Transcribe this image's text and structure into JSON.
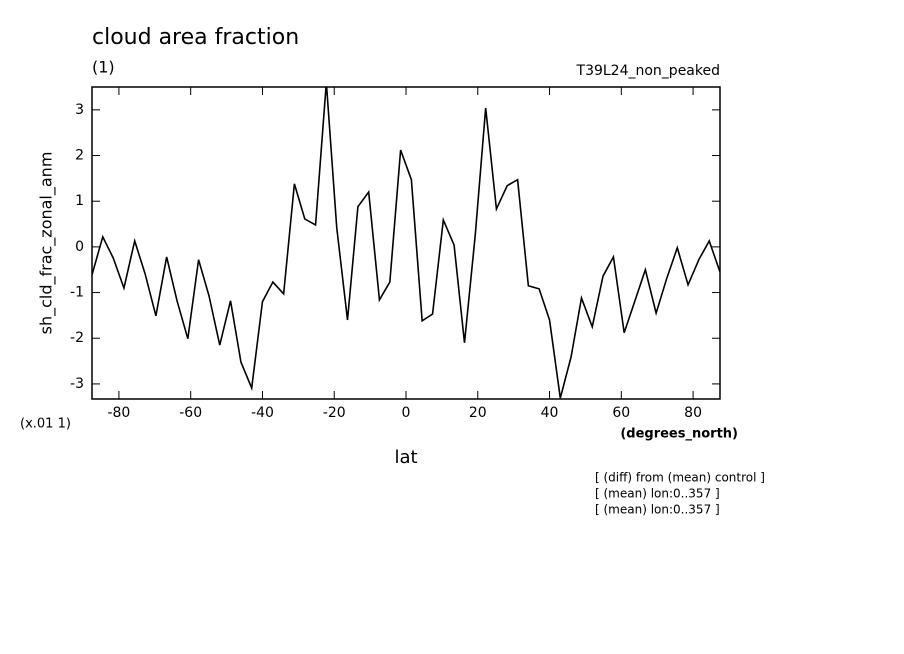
{
  "chart_data": {
    "type": "line",
    "title": "cloud area fraction",
    "subtitle": "(1)",
    "run_label": "T39L24_non_peaked",
    "y_label": "sh_cld_frac_zonal_anm",
    "y_scale_label": "(x.01 1)",
    "x_label": "lat",
    "x_units": "(degrees_north)",
    "notes": [
      "[ (diff) from (mean) control ]",
      "[ (mean) lon:0..357 ]",
      "[ (mean) lon:0..357 ]"
    ],
    "x": [
      -87.5,
      -84.5,
      -81.6,
      -78.6,
      -75.6,
      -72.7,
      -69.7,
      -66.7,
      -63.8,
      -60.8,
      -57.8,
      -54.9,
      -51.9,
      -48.9,
      -46.0,
      -43.0,
      -40.0,
      -37.1,
      -34.1,
      -31.1,
      -28.2,
      -25.2,
      -22.2,
      -19.3,
      -16.3,
      -13.4,
      -10.4,
      -7.4,
      -4.5,
      -1.5,
      1.5,
      4.5,
      7.4,
      10.4,
      13.4,
      16.3,
      19.3,
      22.2,
      25.2,
      28.2,
      31.1,
      34.1,
      37.1,
      40.0,
      43.0,
      46.0,
      48.9,
      51.9,
      54.9,
      57.8,
      60.8,
      63.8,
      66.7,
      69.7,
      72.7,
      75.6,
      78.6,
      81.6,
      84.5,
      87.5
    ],
    "series": [
      {
        "color": "#000000",
        "values": [
          -0.61,
          0.22,
          -0.24,
          -0.9,
          0.13,
          -0.59,
          -1.51,
          -0.22,
          -1.18,
          -2.01,
          -0.28,
          -1.07,
          -2.15,
          -1.18,
          -2.52,
          -3.09,
          -1.2,
          -0.77,
          -1.03,
          1.38,
          0.61,
          0.48,
          3.6,
          0.42,
          -1.6,
          0.88,
          1.2,
          -1.16,
          -0.77,
          2.12,
          1.47,
          -1.62,
          -1.47,
          0.59,
          0.04,
          -2.1,
          0.26,
          3.04,
          0.83,
          1.34,
          1.47,
          -0.85,
          -0.92,
          -1.6,
          -3.31,
          -2.41,
          -1.12,
          -1.75,
          -0.64,
          -0.22,
          -1.88,
          -1.18,
          -0.5,
          -1.45,
          -0.68,
          -0.02,
          -0.83,
          -0.28,
          0.13,
          -0.55
        ]
      }
    ],
    "xlim": [
      -87.5,
      87.5
    ],
    "ylim": [
      -3.33,
      3.5
    ],
    "xticks": [
      -80,
      -60,
      -40,
      -20,
      0,
      20,
      40,
      60,
      80
    ],
    "yticks": [
      -3,
      -2,
      -1,
      0,
      1,
      2,
      3
    ]
  }
}
